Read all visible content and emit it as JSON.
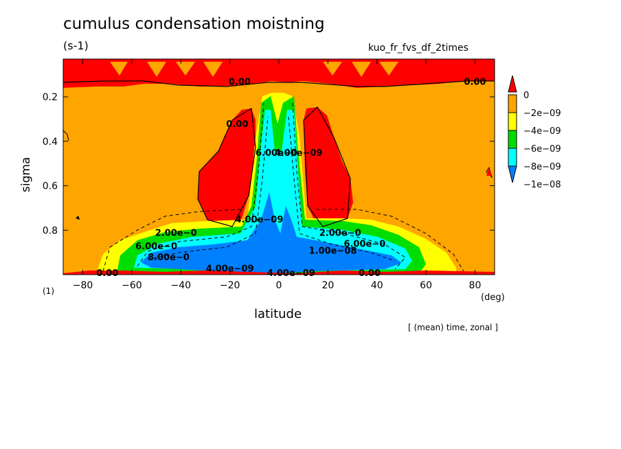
{
  "chart_data": {
    "type": "heatmap",
    "title": "cumulus condensation moistning",
    "units": "(s-1)",
    "run_label": "kuo_fr_fvs_df_2times",
    "xlabel": "latitude",
    "ylabel": "sigma",
    "x_unit": "(deg)",
    "y_unit": "(1)",
    "note": "[ (mean) time, zonal ]",
    "xlim": [
      -88,
      88
    ],
    "ylim": [
      0.03,
      1.0
    ],
    "x_ticks": [
      -80,
      -60,
      -40,
      -20,
      0,
      20,
      40,
      60,
      80
    ],
    "y_ticks": [
      0.2,
      0.4,
      0.6,
      0.8
    ],
    "x_tick_labels": [
      "−80",
      "−60",
      "−40",
      "−20",
      "0",
      "20",
      "40",
      "60",
      "80"
    ],
    "y_tick_labels": [
      "0.2",
      "0.4",
      "0.6",
      "0.8"
    ],
    "colorbar": {
      "labels": [
        "0",
        "−2e−09",
        "−4e−09",
        "−6e−09",
        "−8e−09",
        "−1e−08"
      ],
      "colors": [
        "#ff0000",
        "#ffa500",
        "#ffff00",
        "#00dd00",
        "#00ffff",
        "#0080ff"
      ]
    },
    "contour_labels": [
      {
        "text": "0.00",
        "x": -16,
        "y": 0.13
      },
      {
        "text": "0.00",
        "x": 80,
        "y": 0.13
      },
      {
        "text": "0.00",
        "x": -17,
        "y": 0.32
      },
      {
        "text": "0.00",
        "x": -70,
        "y": 0.99
      },
      {
        "text": "0.00",
        "x": 37,
        "y": 0.99
      },
      {
        "text": "2.00e−0",
        "x": -42,
        "y": 0.81
      },
      {
        "text": "2.00e−0",
        "x": 25,
        "y": 0.81
      },
      {
        "text": "6.00e−0",
        "x": -50,
        "y": 0.87
      },
      {
        "text": "6.00e−0",
        "x": 35,
        "y": 0.86
      },
      {
        "text": "8.00e−0",
        "x": -45,
        "y": 0.92
      },
      {
        "text": "1.00e−08",
        "x": 22,
        "y": 0.89
      },
      {
        "text": "4.00e−09",
        "x": -8,
        "y": 0.75
      },
      {
        "text": "6.00e−0",
        "x": -1,
        "y": 0.45
      },
      {
        "text": "4.00e−09",
        "x": 8,
        "y": 0.45
      },
      {
        "text": "4.00e−09",
        "x": -20,
        "y": 0.97
      },
      {
        "text": "4.00e−09",
        "x": 5,
        "y": 0.99
      }
    ]
  }
}
